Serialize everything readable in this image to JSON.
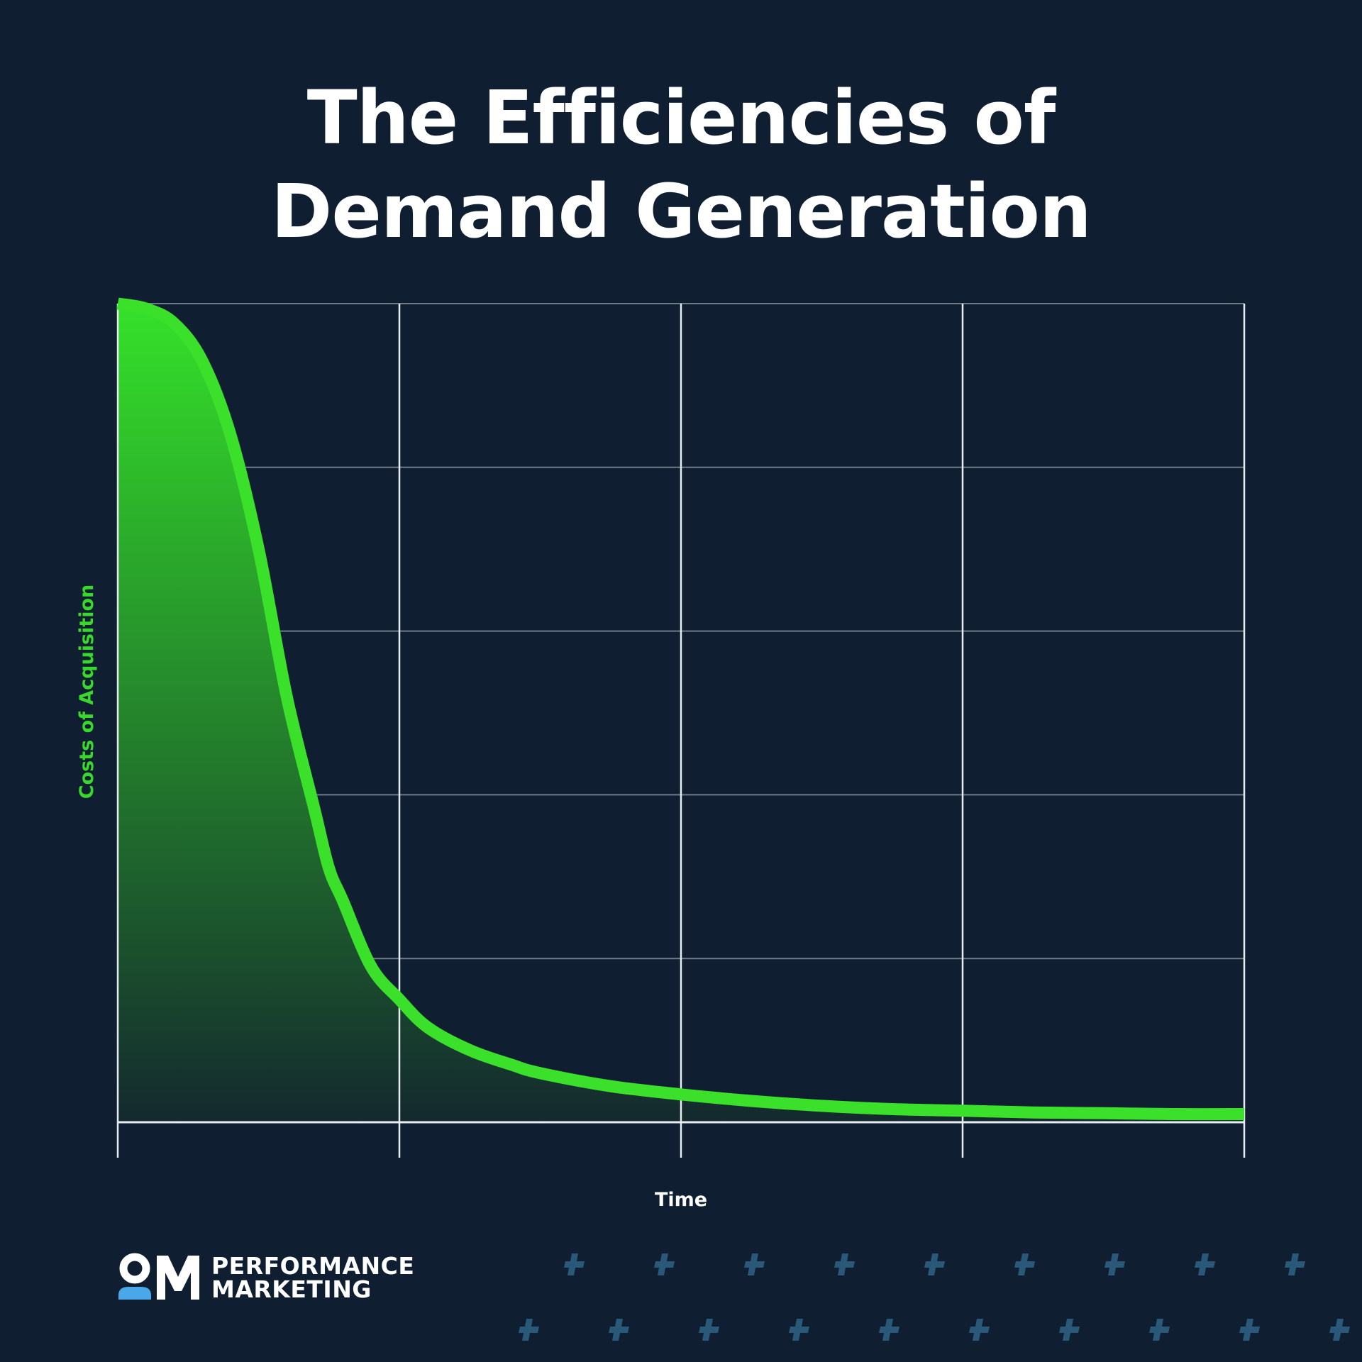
{
  "chart_data": {
    "type": "area",
    "title": "The Efficiencies of Demand Generation",
    "title_lines": [
      "The Efficiencies of",
      "Demand Generation"
    ],
    "xlabel": "Time",
    "ylabel": "Costs of Acquisition",
    "xlim": [
      0,
      4
    ],
    "ylim": [
      0,
      5
    ],
    "grid": true,
    "x_ticks": 4,
    "y_ticks": 5,
    "series": [
      {
        "name": "Costs of Acquisition",
        "x": [
          0,
          0.1,
          0.2,
          0.3,
          0.4,
          0.5,
          0.6,
          0.7,
          0.75,
          0.8,
          0.9,
          1.0,
          1.1,
          1.25,
          1.4,
          1.5,
          1.75,
          2.0,
          2.25,
          2.5,
          2.75,
          3.0,
          3.25,
          3.5,
          3.75,
          4.0
        ],
        "values": [
          5.0,
          4.97,
          4.88,
          4.65,
          4.2,
          3.5,
          2.6,
          1.9,
          1.55,
          1.35,
          0.95,
          0.75,
          0.58,
          0.44,
          0.35,
          0.3,
          0.22,
          0.17,
          0.13,
          0.1,
          0.08,
          0.07,
          0.06,
          0.055,
          0.05,
          0.05
        ]
      }
    ]
  },
  "colors": {
    "background": "#0f1f31",
    "line": "#3ae02a",
    "fill_top": "#35e12a",
    "fill_bottom": "#14292e",
    "grid_vertical": "#e8edf2",
    "grid_horizontal": "#6f7b87",
    "axis_label_y": "#39d92c",
    "axis_label_x": "#ffffff",
    "logo_accent": "#4aa8e8",
    "plus": "#2a5878"
  },
  "brand": {
    "mark": "OM",
    "line1": "PERFORMANCE",
    "line2": "MARKETING"
  },
  "icons": {
    "logo": "om-logo-icon",
    "decoration": "plus-icon"
  }
}
